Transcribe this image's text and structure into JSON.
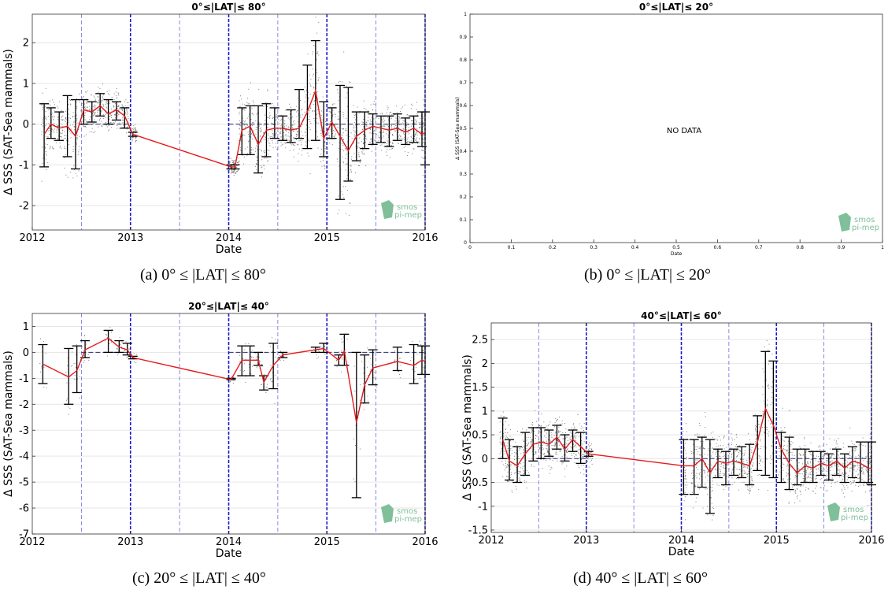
{
  "chart_data": [
    {
      "id": "a",
      "type": "line",
      "title": "0°≤|LAT|≤ 80°",
      "caption": "(a) 0° ≤ |LAT| ≤ 80°",
      "xlabel": "Date",
      "ylabel": "Δ SSS (SAT-Sea mammals)",
      "xlim": [
        "2012-01-01",
        "2016-01-01"
      ],
      "ylim": [
        -2.6,
        2.7
      ],
      "xticks": [
        2012,
        2013,
        2014,
        2015,
        2016
      ],
      "yticks": [
        -2,
        -1,
        0,
        1,
        2
      ],
      "grid": true,
      "watermark": [
        "smos",
        "pi-mep"
      ],
      "series": [
        {
          "name": "",
          "color": "#e41a1c",
          "x": [
            "2012-02-15",
            "2012-03-10",
            "2012-04-10",
            "2012-05-10",
            "2012-06-10",
            "2012-07-10",
            "2012-08-10",
            "2012-09-10",
            "2012-10-10",
            "2012-11-10",
            "2012-12-10",
            "2013-01-10",
            "2014-01-10",
            "2014-01-25",
            "2014-02-20",
            "2014-03-20",
            "2014-04-20",
            "2014-05-20",
            "2014-06-20",
            "2014-07-20",
            "2014-08-20",
            "2014-09-20",
            "2014-10-20",
            "2014-11-20",
            "2014-12-20",
            "2015-01-20",
            "2015-02-20",
            "2015-03-20",
            "2015-04-20",
            "2015-05-20",
            "2015-06-20",
            "2015-07-20",
            "2015-08-20",
            "2015-09-20",
            "2015-10-20",
            "2015-11-20",
            "2015-12-20",
            "2016-01-01"
          ],
          "values": [
            -0.25,
            0.0,
            -0.1,
            -0.05,
            -0.3,
            0.35,
            0.3,
            0.45,
            0.25,
            0.35,
            0.2,
            -0.25,
            -1.05,
            -1.05,
            -0.15,
            -0.05,
            -0.5,
            -0.15,
            -0.1,
            -0.1,
            -0.15,
            -0.1,
            0.3,
            0.82,
            -0.35,
            0.05,
            -0.3,
            -0.65,
            -0.3,
            -0.15,
            -0.05,
            -0.1,
            -0.15,
            -0.1,
            -0.2,
            -0.1,
            -0.25,
            -0.2
          ],
          "err_low": [
            -1.05,
            -0.35,
            -0.4,
            -0.8,
            -1.1,
            0.0,
            0.05,
            0.2,
            0.0,
            0.1,
            -0.1,
            -0.3,
            -1.1,
            -1.1,
            -0.75,
            -0.75,
            -1.2,
            -0.8,
            -0.35,
            -0.4,
            -0.45,
            -0.35,
            -0.6,
            -0.4,
            -0.8,
            -0.35,
            -1.85,
            -1.4,
            -0.9,
            -0.6,
            -0.5,
            -0.45,
            -0.55,
            -0.4,
            -0.5,
            -0.45,
            -0.55,
            -1.0
          ],
          "err_high": [
            0.5,
            0.4,
            0.3,
            0.7,
            0.6,
            0.6,
            0.55,
            0.75,
            0.6,
            0.55,
            0.4,
            -0.2,
            -1.0,
            -1.0,
            0.4,
            0.45,
            0.45,
            0.5,
            0.4,
            0.2,
            0.35,
            0.85,
            1.45,
            2.05,
            0.55,
            0.4,
            0.95,
            0.9,
            0.3,
            0.3,
            0.25,
            0.2,
            0.2,
            0.25,
            0.15,
            0.2,
            0.3,
            0.3
          ]
        }
      ]
    },
    {
      "id": "b",
      "type": "line",
      "title": "0°≤|LAT|≤ 20°",
      "caption": "(b) 0° ≤ |LAT| ≤ 20°",
      "xlabel": "Date",
      "ylabel": "Δ SSS (SAT-Sea mammals)",
      "xlim": [
        0,
        1
      ],
      "ylim": [
        0,
        1
      ],
      "xticks": [
        "0",
        "0.1",
        "0.2",
        "0.3",
        "0.4",
        "0.5",
        "0.6",
        "0.7",
        "0.8",
        "0.9",
        "1"
      ],
      "yticks": [
        "0",
        "0.1",
        "0.2",
        "0.3",
        "0.4",
        "0.5",
        "0.6",
        "0.7",
        "0.8",
        "0.9",
        "1"
      ],
      "grid": false,
      "annotation": "NO DATA",
      "watermark": [
        "smos",
        "pi-mep"
      ],
      "series": []
    },
    {
      "id": "c",
      "type": "line",
      "title": "20°≤|LAT|≤ 40°",
      "caption": "(c) 20° ≤ |LAT| ≤ 40°",
      "xlabel": "Date",
      "ylabel": "Δ SSS (SAT-Sea mammals)",
      "xlim": [
        "2012-01-01",
        "2016-01-01"
      ],
      "ylim": [
        -7,
        1.5
      ],
      "xticks": [
        2012,
        2013,
        2014,
        2015,
        2016
      ],
      "yticks": [
        -7,
        -6,
        -5,
        -4,
        -3,
        -2,
        -1,
        0,
        1
      ],
      "grid": true,
      "watermark": [
        "smos",
        "pi-mep"
      ],
      "series": [
        {
          "name": "",
          "color": "#e41a1c",
          "x": [
            "2012-02-10",
            "2012-05-15",
            "2012-06-15",
            "2012-07-15",
            "2012-10-10",
            "2012-11-20",
            "2012-12-20",
            "2013-01-10",
            "2014-01-10",
            "2014-02-20",
            "2014-03-20",
            "2014-04-20",
            "2014-05-10",
            "2014-06-15",
            "2014-07-20",
            "2014-11-20",
            "2014-12-20",
            "2015-02-15",
            "2015-03-05",
            "2015-04-20",
            "2015-05-20",
            "2015-06-20",
            "2015-09-20",
            "2015-11-20",
            "2015-12-20",
            "2016-01-01"
          ],
          "values": [
            -0.45,
            -0.95,
            -0.7,
            0.1,
            0.55,
            0.2,
            0.1,
            -0.2,
            -1.05,
            -0.3,
            -0.3,
            -0.3,
            -1.15,
            -0.5,
            -0.1,
            0.1,
            0.15,
            -0.3,
            0.05,
            -2.7,
            -1.25,
            -0.6,
            -0.35,
            -0.5,
            -0.3,
            -0.35
          ],
          "err_low": [
            -1.2,
            -2.0,
            -1.55,
            -0.2,
            0.0,
            0.0,
            -0.1,
            -0.25,
            -1.05,
            -0.9,
            -0.9,
            -0.5,
            -1.45,
            -1.4,
            -0.2,
            0.0,
            0.0,
            -0.5,
            -0.5,
            -5.6,
            -1.95,
            -1.25,
            -0.7,
            -1.2,
            -0.85,
            -0.85
          ],
          "err_high": [
            0.3,
            0.15,
            0.25,
            0.45,
            0.85,
            0.45,
            0.35,
            -0.15,
            -1.0,
            0.25,
            0.25,
            0.0,
            -0.9,
            0.35,
            0.0,
            0.2,
            0.35,
            -0.1,
            0.7,
            0.0,
            -0.1,
            0.1,
            0.2,
            0.3,
            0.25,
            0.25
          ]
        }
      ]
    },
    {
      "id": "d",
      "type": "line",
      "title": "40°≤|LAT|≤ 60°",
      "caption": "(d) 40° ≤ |LAT| ≤ 60°",
      "xlabel": "Date",
      "ylabel": "Δ SSS (SAT-Sea mammals)",
      "xlim": [
        "2012-01-01",
        "2016-01-01"
      ],
      "ylim": [
        -1.55,
        2.85
      ],
      "xticks": [
        2012,
        2013,
        2014,
        2015,
        2016
      ],
      "yticks": [
        -1.5,
        -1,
        -0.5,
        0,
        0.5,
        1,
        1.5,
        2,
        2.5
      ],
      "grid": true,
      "watermark": [
        "smos",
        "pi-mep"
      ],
      "series": [
        {
          "name": "",
          "color": "#e41a1c",
          "x": [
            "2012-02-15",
            "2012-03-10",
            "2012-04-10",
            "2012-05-10",
            "2012-06-10",
            "2012-07-10",
            "2012-08-10",
            "2012-09-10",
            "2012-10-10",
            "2012-11-10",
            "2012-12-10",
            "2013-01-10",
            "2014-01-10",
            "2014-02-20",
            "2014-03-20",
            "2014-04-20",
            "2014-05-20",
            "2014-06-20",
            "2014-07-20",
            "2014-08-20",
            "2014-09-20",
            "2014-10-20",
            "2014-11-20",
            "2014-12-20",
            "2015-01-20",
            "2015-02-20",
            "2015-03-20",
            "2015-04-20",
            "2015-05-20",
            "2015-06-20",
            "2015-07-20",
            "2015-08-20",
            "2015-09-20",
            "2015-10-20",
            "2015-11-20",
            "2015-12-20",
            "2016-01-01"
          ],
          "values": [
            0.4,
            -0.05,
            -0.15,
            0.1,
            0.3,
            0.35,
            0.3,
            0.45,
            0.2,
            0.4,
            0.25,
            0.1,
            -0.15,
            -0.15,
            0.0,
            -0.3,
            -0.05,
            -0.1,
            -0.05,
            -0.1,
            -0.15,
            0.35,
            1.05,
            0.7,
            0.2,
            -0.1,
            -0.3,
            -0.15,
            -0.2,
            -0.1,
            -0.15,
            -0.05,
            -0.2,
            -0.05,
            -0.1,
            -0.2,
            -0.2
          ],
          "err_low": [
            0.0,
            -0.45,
            -0.5,
            -0.35,
            -0.05,
            0.0,
            0.05,
            0.2,
            -0.05,
            0.15,
            -0.1,
            0.05,
            -0.75,
            -0.75,
            -0.6,
            -1.15,
            -0.4,
            -0.55,
            -0.35,
            -0.4,
            -0.55,
            -0.25,
            -0.35,
            -0.4,
            -0.5,
            -0.65,
            -0.55,
            -0.5,
            -0.5,
            -0.35,
            -0.45,
            -0.35,
            -0.5,
            -0.4,
            -0.5,
            -0.5,
            -0.55
          ],
          "err_high": [
            0.85,
            0.4,
            0.25,
            0.55,
            0.65,
            0.65,
            0.6,
            0.7,
            0.5,
            0.6,
            0.55,
            0.15,
            0.4,
            0.4,
            0.45,
            0.4,
            0.2,
            0.15,
            0.2,
            0.25,
            0.3,
            0.9,
            2.25,
            2.05,
            0.55,
            0.45,
            0.2,
            0.2,
            0.15,
            0.15,
            0.1,
            0.2,
            0.1,
            0.25,
            0.35,
            0.35,
            0.35
          ]
        }
      ]
    }
  ]
}
